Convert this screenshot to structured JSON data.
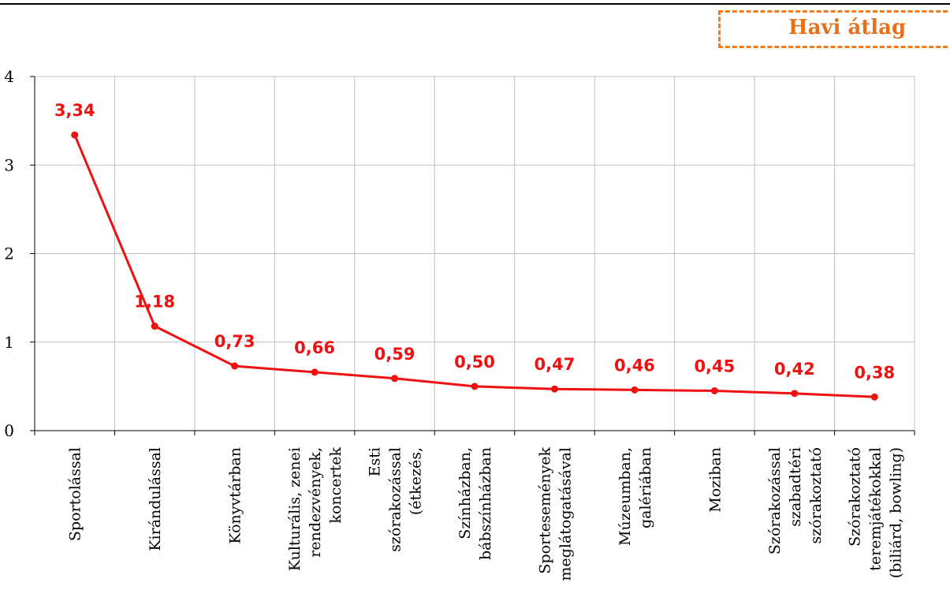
{
  "legend": {
    "label": "Havi átlag",
    "color": "#f07d1a"
  },
  "chart_data": {
    "type": "line",
    "title": "",
    "xlabel": "",
    "ylabel": "",
    "ylim": [
      0,
      4
    ],
    "yticks": [
      "0",
      "1",
      "2",
      "3",
      "4"
    ],
    "grid": true,
    "line_color": "#ee1111",
    "categories": [
      [
        "Sportolással"
      ],
      [
        "Kirándulással"
      ],
      [
        "Könyvtárban"
      ],
      [
        "Kulturális, zenei",
        "rendezvények,",
        "koncertek"
      ],
      [
        "Esti",
        "szórakozással",
        "(étkezés,"
      ],
      [
        "Színházban,",
        "bábszínházban"
      ],
      [
        "Sportesemények",
        "meglátogatásával"
      ],
      [
        "Múzeumban,",
        "galériában"
      ],
      [
        "Moziban"
      ],
      [
        "Szórakozással",
        "szabadtéri",
        "szórakoztató"
      ],
      [
        "Szórakoztató",
        "teremjátékokkal",
        "(biliárd, bowling)"
      ]
    ],
    "series": [
      {
        "values": [
          3.34,
          1.18,
          0.73,
          0.66,
          0.59,
          0.5,
          0.47,
          0.46,
          0.45,
          0.42,
          0.38
        ],
        "labels": [
          "3,34",
          "1,18",
          "0,73",
          "0,66",
          "0,59",
          "0,50",
          "0,47",
          "0,46",
          "0,45",
          "0,42",
          "0,38"
        ]
      }
    ]
  }
}
